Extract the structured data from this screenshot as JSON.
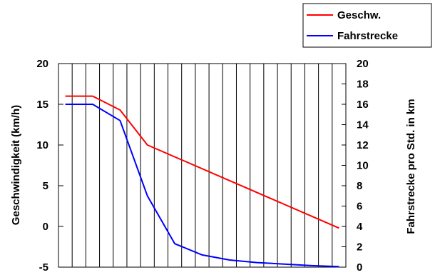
{
  "chart_data": {
    "type": "line",
    "x_count": 21,
    "y_left": {
      "label": "Geschwindigkeit (km/h)",
      "min": -5,
      "max": 20,
      "ticks": [
        -5,
        0,
        5,
        10,
        15,
        20
      ]
    },
    "y_right": {
      "label": "Fahrstrecke pro Std. in km",
      "min": 0,
      "max": 20,
      "ticks": [
        0,
        2,
        4,
        6,
        8,
        10,
        12,
        14,
        16,
        18,
        20
      ]
    },
    "grid": "vertical",
    "legend_position": "top-right",
    "series": [
      {
        "name": "Geschw.",
        "color": "#ff0000",
        "axis": "left",
        "points": [
          [
            1,
            16
          ],
          [
            3,
            16
          ],
          [
            5,
            14.3
          ],
          [
            7,
            10
          ],
          [
            21,
            -0.2
          ]
        ]
      },
      {
        "name": "Fahrstrecke",
        "color": "#0000ff",
        "axis": "right",
        "points": [
          [
            1,
            16
          ],
          [
            3,
            16
          ],
          [
            5,
            14.4
          ],
          [
            7,
            7
          ],
          [
            9,
            2.3
          ],
          [
            11,
            1.2
          ],
          [
            13,
            0.7
          ],
          [
            15,
            0.45
          ],
          [
            17,
            0.3
          ],
          [
            19,
            0.15
          ],
          [
            21,
            0.05
          ]
        ]
      }
    ]
  }
}
